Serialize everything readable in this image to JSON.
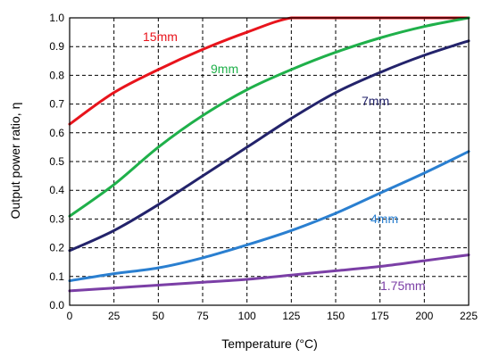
{
  "chart_data": {
    "type": "line",
    "title": "",
    "xlabel": "Temperature (°C)",
    "ylabel": "Output power ratio, η",
    "xlim": [
      0,
      225
    ],
    "ylim": [
      0,
      1.0
    ],
    "x_ticks": [
      "0",
      "25",
      "50",
      "75",
      "100",
      "125",
      "150",
      "175",
      "200",
      "225"
    ],
    "y_ticks": [
      "0.0",
      "0.1",
      "0.2",
      "0.3",
      "0.4",
      "0.5",
      "0.6",
      "0.7",
      "0.8",
      "0.9",
      "1.0"
    ],
    "grid": true,
    "x": [
      0,
      25,
      50,
      75,
      100,
      125,
      150,
      175,
      200,
      225
    ],
    "series": [
      {
        "name": "15mm",
        "color": "#e8141c",
        "values": [
          0.63,
          0.74,
          0.82,
          0.89,
          0.95,
          1.0,
          1.0,
          1.0,
          1.0,
          1.0
        ]
      },
      {
        "name": "9mm",
        "color": "#1fb04a",
        "values": [
          0.31,
          0.42,
          0.55,
          0.66,
          0.75,
          0.82,
          0.88,
          0.93,
          0.97,
          1.0
        ]
      },
      {
        "name": "7mm",
        "color": "#23236b",
        "values": [
          0.19,
          0.26,
          0.35,
          0.45,
          0.55,
          0.65,
          0.74,
          0.81,
          0.87,
          0.92
        ]
      },
      {
        "name": "4mm",
        "color": "#2a7fd0",
        "values": [
          0.085,
          0.11,
          0.13,
          0.165,
          0.21,
          0.26,
          0.32,
          0.39,
          0.46,
          0.535
        ]
      },
      {
        "name": "1.75mm",
        "color": "#7b3fa6",
        "values": [
          0.05,
          0.06,
          0.07,
          0.08,
          0.09,
          0.105,
          0.12,
          0.135,
          0.155,
          0.175
        ]
      }
    ]
  }
}
